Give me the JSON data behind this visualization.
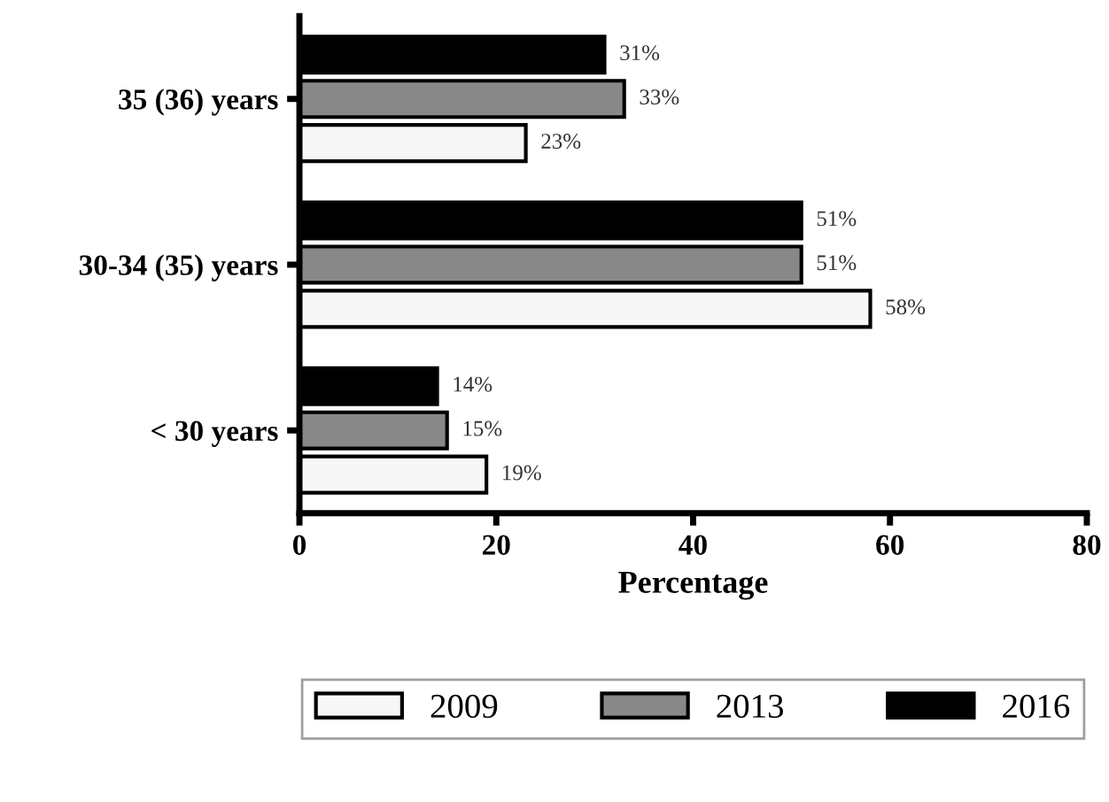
{
  "chart_data": {
    "type": "bar",
    "orientation": "horizontal",
    "xlabel": "Percentage",
    "categories": [
      "35 (36) years",
      "30-34 (35) years",
      "< 30 years"
    ],
    "series": [
      {
        "name": "2009",
        "color": "#f7f7f7",
        "values": [
          23,
          58,
          19
        ],
        "value_labels": [
          "23%",
          "58%",
          "19%"
        ]
      },
      {
        "name": "2013",
        "color": "#888888",
        "values": [
          33,
          51,
          15
        ],
        "value_labels": [
          "33%",
          "51%",
          "15%"
        ]
      },
      {
        "name": "2016",
        "color": "#000000",
        "values": [
          31,
          51,
          14
        ],
        "value_labels": [
          "31%",
          "51%",
          "14%"
        ]
      }
    ],
    "xlim": [
      0,
      80
    ],
    "xticks": [
      0,
      20,
      40,
      60,
      80
    ],
    "grid": false,
    "legend": "bottom"
  }
}
